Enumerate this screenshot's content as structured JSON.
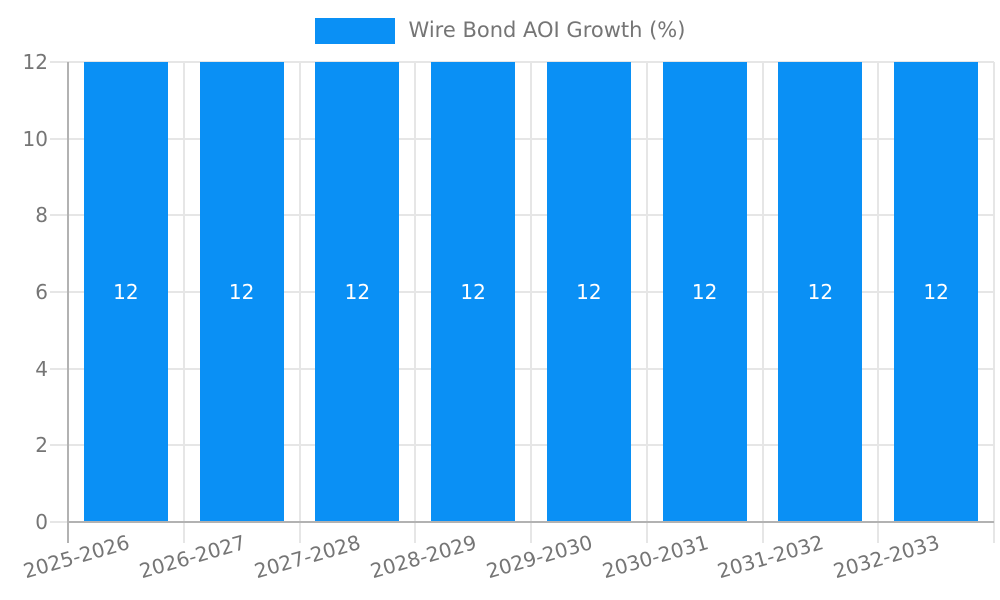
{
  "legend": {
    "label": "Wire Bond AOI Growth (%)"
  },
  "chart_data": {
    "type": "bar",
    "title": "Wire Bond AOI Growth (%)",
    "categories": [
      "2025-2026",
      "2026-2027",
      "2027-2028",
      "2028-2029",
      "2029-2030",
      "2030-2031",
      "2031-2032",
      "2032-2033"
    ],
    "series": [
      {
        "name": "Wire Bond AOI Growth (%)",
        "values": [
          12,
          12,
          12,
          12,
          12,
          12,
          12,
          12
        ]
      }
    ],
    "bar_value_labels": [
      "12",
      "12",
      "12",
      "12",
      "12",
      "12",
      "12",
      "12"
    ],
    "xlabel": "",
    "ylabel": "",
    "ylim": [
      0,
      12
    ],
    "yticks": [
      0,
      2,
      4,
      6,
      8,
      10,
      12
    ],
    "grid": true,
    "legend_position": "top",
    "colors": {
      "bar": "#0a90f5",
      "grid": "#e6e6e6",
      "axis": "#b2b2b2",
      "tick_text": "#757575",
      "bar_label_text": "#ffffff",
      "background": "#ffffff"
    }
  }
}
